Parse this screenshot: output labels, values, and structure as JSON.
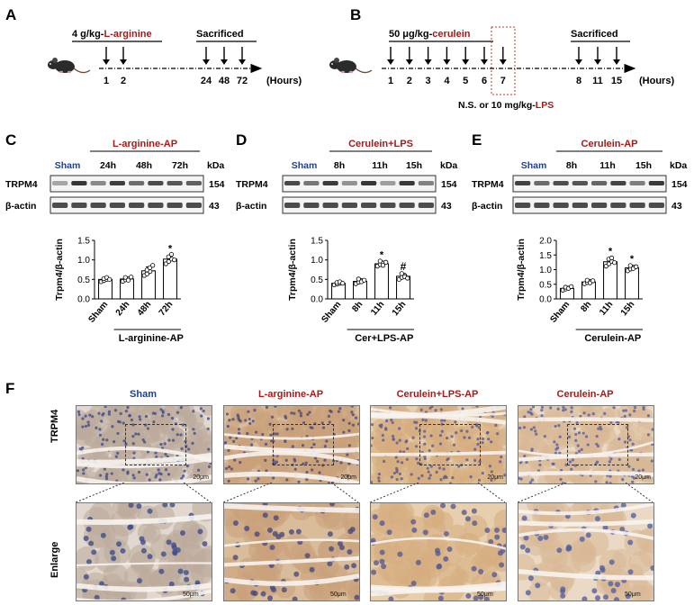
{
  "panel_a": {
    "letter": "A",
    "dose_prefix": "4 g/kg-",
    "dose_drug": "L-arginine",
    "sacrificed": "Sacrificed",
    "injection_times": [
      "1",
      "2"
    ],
    "sacrifice_times": [
      "24",
      "48",
      "72"
    ],
    "axis_unit": "(Hours)"
  },
  "panel_b": {
    "letter": "B",
    "dose_prefix": "50 μg/kg-",
    "dose_drug": "cerulein",
    "sacrificed": "Sacrificed",
    "injection_times": [
      "1",
      "2",
      "3",
      "4",
      "5",
      "6",
      "7"
    ],
    "sacrifice_times": [
      "8",
      "11",
      "15"
    ],
    "axis_unit": "(Hours)",
    "treatment_prefix": "N.S. or 10 mg/kg-",
    "treatment_drug": "LPS"
  },
  "blots": [
    {
      "letter": "C",
      "group": "L-arginine-AP",
      "lanes": [
        "Sham",
        "24h",
        "48h",
        "72h"
      ],
      "kda_label": "kDa",
      "rows": [
        {
          "protein": "TRPM4",
          "kda": "154"
        },
        {
          "protein": "β-actin",
          "kda": "43"
        }
      ]
    },
    {
      "letter": "D",
      "group": "Cerulein+LPS",
      "lanes": [
        "Sham",
        "8h",
        "11h",
        "15h"
      ],
      "kda_label": "kDa",
      "rows": [
        {
          "protein": "TRPM4",
          "kda": "154"
        },
        {
          "protein": "β-actin",
          "kda": "43"
        }
      ]
    },
    {
      "letter": "E",
      "group": "Cerulein-AP",
      "lanes": [
        "Sham",
        "8h",
        "11h",
        "15h"
      ],
      "kda_label": "kDa",
      "rows": [
        {
          "protein": "TRPM4",
          "kda": "154"
        },
        {
          "protein": "β-actin",
          "kda": "43"
        }
      ]
    }
  ],
  "chart_data": [
    {
      "type": "bar",
      "panel": "C",
      "ylabel": "Trpm4/β-actin",
      "xgroup_label": "L-arginine-AP",
      "categories": [
        "Sham",
        "24h",
        "48h",
        "72h"
      ],
      "values": [
        0.5,
        0.51,
        0.72,
        1.02
      ],
      "errors": [
        0.05,
        0.05,
        0.1,
        0.1
      ],
      "points": [
        [
          0.44,
          0.47,
          0.5,
          0.52,
          0.55,
          0.5
        ],
        [
          0.45,
          0.49,
          0.52,
          0.55,
          0.48,
          0.56
        ],
        [
          0.6,
          0.65,
          0.7,
          0.74,
          0.8,
          0.86,
          0.64
        ],
        [
          0.9,
          0.96,
          1.02,
          1.08,
          1.14,
          1.0
        ]
      ],
      "annotations": [
        "",
        "",
        "",
        "*"
      ],
      "ylim": [
        0,
        1.5
      ],
      "yticks": [
        "0.0",
        "0.5",
        "1.0",
        "1.5"
      ]
    },
    {
      "type": "bar",
      "panel": "D",
      "ylabel": "Trpm4/β-actin",
      "xgroup_label": "Cer+LPS-AP",
      "categories": [
        "Sham",
        "8h",
        "11h",
        "15h"
      ],
      "values": [
        0.4,
        0.45,
        0.9,
        0.58
      ],
      "errors": [
        0.04,
        0.06,
        0.06,
        0.07
      ],
      "points": [
        [
          0.36,
          0.38,
          0.4,
          0.42,
          0.44,
          0.4
        ],
        [
          0.39,
          0.43,
          0.47,
          0.51,
          0.44,
          0.48
        ],
        [
          0.84,
          0.88,
          0.92,
          0.97,
          0.86,
          0.94
        ],
        [
          0.5,
          0.55,
          0.6,
          0.65,
          0.57,
          0.53
        ]
      ],
      "annotations": [
        "",
        "",
        "*",
        "#"
      ],
      "ylim": [
        0,
        1.5
      ],
      "yticks": [
        "0.0",
        "0.5",
        "1.0",
        "1.5"
      ]
    },
    {
      "type": "bar",
      "panel": "E",
      "ylabel": "Trpm4/β-actin",
      "xgroup_label": "Cerulein-AP",
      "categories": [
        "Sham",
        "8h",
        "11h",
        "15h"
      ],
      "values": [
        0.36,
        0.58,
        1.27,
        1.06
      ],
      "errors": [
        0.05,
        0.06,
        0.13,
        0.08
      ],
      "points": [
        [
          0.3,
          0.34,
          0.37,
          0.4,
          0.36,
          0.42
        ],
        [
          0.52,
          0.56,
          0.6,
          0.64,
          0.55,
          0.62
        ],
        [
          1.12,
          1.2,
          1.28,
          1.36,
          1.4,
          1.24
        ],
        [
          0.96,
          1.02,
          1.08,
          1.14,
          1.04,
          1.1
        ]
      ],
      "annotations": [
        "",
        "",
        "*",
        "*"
      ],
      "ylim": [
        0,
        2.0
      ],
      "yticks": [
        "0.0",
        "0.5",
        "1.0",
        "1.5",
        "2.0"
      ]
    }
  ],
  "panel_f": {
    "letter": "F",
    "columns": [
      "Sham",
      "L-arginine-AP",
      "Cerulein+LPS-AP",
      "Cerulein-AP"
    ],
    "row_labels": [
      "TRPM4",
      "Enlarge"
    ],
    "scale_top": "20μm",
    "scale_bottom": "50μm",
    "colors": {
      "sham": "#1f3f8f",
      "treated": "#a31c1c"
    }
  }
}
